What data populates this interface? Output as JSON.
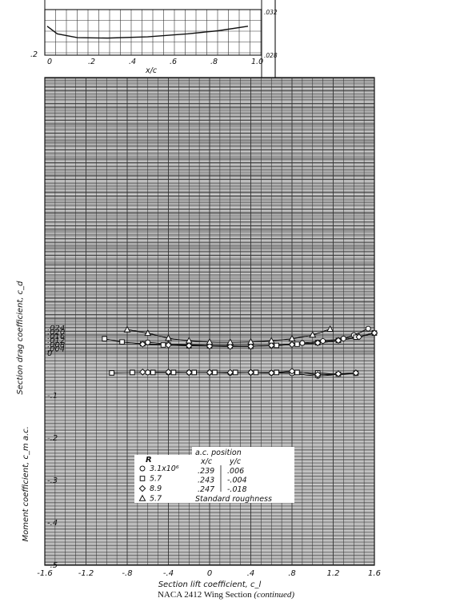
{
  "figure": {
    "caption_prefix": "NACA 2412 Wing Section",
    "caption_suffix": "(continued)"
  },
  "chart_data": [
    {
      "type": "line",
      "panel": "section-shape",
      "xlabel": "x/c",
      "x_ticks": [
        "0",
        ".2",
        ".4",
        ".6",
        ".8",
        "1.0"
      ],
      "y_ticks": [
        ".2"
      ],
      "xlim": [
        0,
        1.0
      ],
      "ylim": [
        -0.25,
        0.12
      ],
      "series": [
        {
          "values": [
            [
              0,
              -0.02
            ],
            [
              0.05,
              -0.07
            ],
            [
              0.15,
              -0.095
            ],
            [
              0.3,
              -0.098
            ],
            [
              0.5,
              -0.09
            ],
            [
              0.7,
              -0.07
            ],
            [
              0.85,
              -0.05
            ],
            [
              1.0,
              -0.02
            ]
          ]
        }
      ],
      "right_labels": [
        ".032",
        ".028"
      ]
    },
    {
      "type": "scatter",
      "panel": "drag-and-moment",
      "xlabel": "Section lift coefficient, c_l",
      "ylabel_drag": "Section drag coefficient, c_d",
      "ylabel_moment": "Moment coefficient, c_m a.c.",
      "x_ticks": [
        "-1.6",
        "-1.2",
        "-.8",
        "-.4",
        "0",
        ".4",
        ".8",
        "1.2",
        "1.6"
      ],
      "drag_ticks": [
        ".004",
        ".008",
        ".012",
        ".016",
        ".020",
        ".024"
      ],
      "moment_ticks": [
        "0",
        "-.1",
        "-.2",
        "-.3",
        "-.4",
        "-.5"
      ],
      "xlim": [
        -1.6,
        1.6
      ],
      "grid": true,
      "legend": {
        "header": "R",
        "entries": [
          {
            "label": "3.1x10⁶",
            "marker": "circle"
          },
          {
            "label": "5.7",
            "marker": "square"
          },
          {
            "label": "8.9",
            "marker": "diamond"
          },
          {
            "label": "5.7",
            "marker": "triangle"
          }
        ],
        "ac_title": "a.c. position",
        "ac_headers": [
          "x/c",
          "y/c"
        ],
        "ac_rows": [
          [
            ".239",
            ".006"
          ],
          [
            ".243",
            "-.004"
          ],
          [
            ".247",
            "-.018"
          ]
        ],
        "note": "Standard roughness"
      },
      "drag_series": [
        {
          "marker": "circle",
          "points": [
            [
              -0.6,
              0.0097
            ],
            [
              -0.4,
              0.0081
            ],
            [
              -0.2,
              0.0073
            ],
            [
              0.0,
              0.0068
            ],
            [
              0.2,
              0.0064
            ],
            [
              0.4,
              0.0062
            ],
            [
              0.6,
              0.0067
            ],
            [
              0.8,
              0.0077
            ],
            [
              0.9,
              0.009
            ],
            [
              1.1,
              0.011
            ],
            [
              1.3,
              0.0133
            ],
            [
              1.4,
              0.0165
            ],
            [
              1.54,
              0.0226
            ]
          ]
        },
        {
          "marker": "square",
          "points": [
            [
              -1.02,
              0.0131
            ],
            [
              -0.85,
              0.0101
            ],
            [
              -0.65,
              0.0083
            ],
            [
              -0.45,
              0.0072
            ],
            [
              -0.2,
              0.0066
            ],
            [
              0.0,
              0.0063
            ],
            [
              0.2,
              0.0062
            ],
            [
              0.4,
              0.006
            ],
            [
              0.65,
              0.0068
            ],
            [
              0.85,
              0.0079
            ],
            [
              1.05,
              0.0093
            ],
            [
              1.25,
              0.0115
            ],
            [
              1.42,
              0.0146
            ],
            [
              1.6,
              0.0185
            ]
          ]
        },
        {
          "marker": "diamond",
          "points": [
            [
              -0.65,
              0.0079
            ],
            [
              -0.4,
              0.0071
            ],
            [
              -0.2,
              0.0065
            ],
            [
              0.0,
              0.0061
            ],
            [
              0.2,
              0.0058
            ],
            [
              0.4,
              0.0059
            ],
            [
              0.6,
              0.0068
            ],
            [
              0.8,
              0.0076
            ],
            [
              1.05,
              0.0092
            ],
            [
              1.25,
              0.0115
            ],
            [
              1.45,
              0.0148
            ],
            [
              1.6,
              0.0186
            ]
          ]
        },
        {
          "marker": "triangle",
          "points": [
            [
              -0.8,
              0.0217
            ],
            [
              -0.6,
              0.0183
            ],
            [
              -0.4,
              0.0137
            ],
            [
              -0.2,
              0.0112
            ],
            [
              0.0,
              0.01
            ],
            [
              0.2,
              0.0098
            ],
            [
              0.4,
              0.0101
            ],
            [
              0.6,
              0.0111
            ],
            [
              0.8,
              0.0132
            ],
            [
              1.0,
              0.0167
            ],
            [
              1.17,
              0.0222
            ]
          ]
        }
      ],
      "moment_series": [
        {
          "marker": "circle",
          "points": [
            [
              -0.6,
              -0.047
            ],
            [
              -0.4,
              -0.047
            ],
            [
              -0.2,
              -0.047
            ],
            [
              0.0,
              -0.047
            ],
            [
              0.2,
              -0.048
            ],
            [
              0.4,
              -0.047
            ],
            [
              0.6,
              -0.048
            ],
            [
              0.8,
              -0.049
            ],
            [
              1.05,
              -0.055
            ],
            [
              1.25,
              -0.051
            ],
            [
              1.42,
              -0.049
            ]
          ]
        },
        {
          "marker": "square",
          "points": [
            [
              -0.95,
              -0.048
            ],
            [
              -0.75,
              -0.047
            ],
            [
              -0.55,
              -0.047
            ],
            [
              -0.35,
              -0.047
            ],
            [
              -0.15,
              -0.047
            ],
            [
              0.05,
              -0.047
            ],
            [
              0.25,
              -0.047
            ],
            [
              0.45,
              -0.047
            ],
            [
              0.65,
              -0.047
            ],
            [
              0.85,
              -0.047
            ],
            [
              1.05,
              -0.048
            ],
            [
              1.25,
              -0.051
            ],
            [
              1.42,
              -0.049
            ]
          ]
        },
        {
          "marker": "diamond",
          "points": [
            [
              -0.65,
              -0.046
            ],
            [
              -0.4,
              -0.046
            ],
            [
              -0.2,
              -0.047
            ],
            [
              0.0,
              -0.047
            ],
            [
              0.2,
              -0.047
            ],
            [
              0.4,
              -0.047
            ],
            [
              0.6,
              -0.048
            ],
            [
              0.8,
              -0.044
            ],
            [
              1.05,
              -0.052
            ],
            [
              1.25,
              -0.05
            ],
            [
              1.42,
              -0.048
            ]
          ]
        }
      ]
    }
  ]
}
